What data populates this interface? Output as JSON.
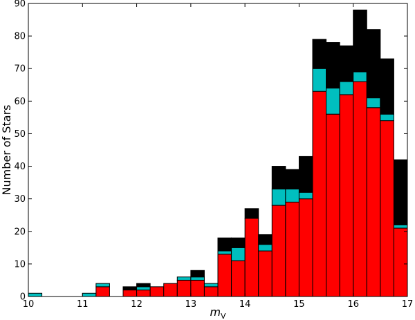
{
  "chart_data": {
    "type": "bar",
    "stacked": true,
    "xlabel": "m_V",
    "xlabel_main": "m",
    "xlabel_sub": "V",
    "ylabel": "Number of Stars",
    "xlim": [
      10,
      17
    ],
    "ylim": [
      0,
      90
    ],
    "xticks": [
      10,
      11,
      12,
      13,
      14,
      15,
      16,
      17
    ],
    "yticks": [
      0,
      10,
      20,
      30,
      40,
      50,
      60,
      70,
      80,
      90
    ],
    "bin_width": 0.25,
    "x": [
      10.0,
      10.25,
      10.5,
      10.75,
      11.0,
      11.25,
      11.5,
      11.75,
      12.0,
      12.25,
      12.5,
      12.75,
      13.0,
      13.25,
      13.5,
      13.75,
      14.0,
      14.25,
      14.5,
      14.75,
      15.0,
      15.25,
      15.5,
      15.75,
      16.0,
      16.25,
      16.5,
      16.75
    ],
    "series": [
      {
        "color": "#ff0000",
        "values": [
          0,
          0,
          0,
          0,
          0,
          3,
          0,
          2,
          2,
          3,
          4,
          5,
          5,
          3,
          13,
          11,
          24,
          14,
          28,
          29,
          30,
          63,
          56,
          62,
          66,
          58,
          54,
          21
        ]
      },
      {
        "color": "#00bfbf",
        "values": [
          1,
          0,
          0,
          0,
          1,
          1,
          0,
          0,
          1,
          0,
          0,
          1,
          1,
          1,
          1,
          4,
          0,
          2,
          5,
          4,
          2,
          7,
          8,
          4,
          3,
          3,
          2,
          1
        ]
      },
      {
        "color": "#000000",
        "values": [
          0,
          0,
          0,
          0,
          0,
          0,
          0,
          1,
          1,
          0,
          0,
          0,
          2,
          0,
          4,
          3,
          3,
          3,
          7,
          6,
          11,
          9,
          14,
          11,
          19,
          21,
          17,
          20
        ]
      }
    ],
    "grid": false,
    "legend": "none"
  }
}
